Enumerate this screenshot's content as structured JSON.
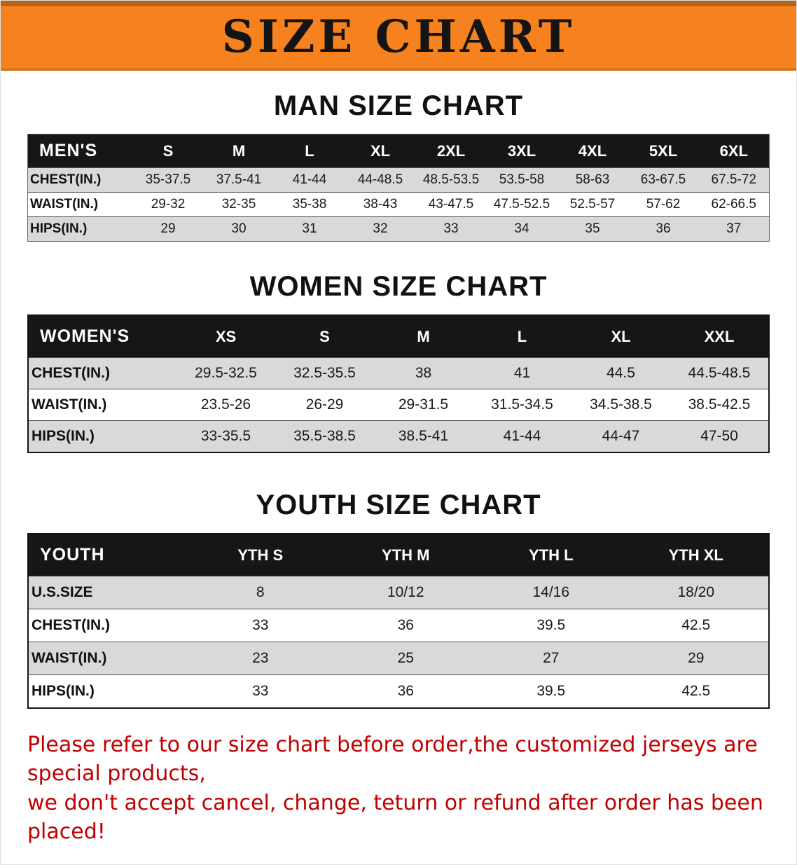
{
  "banner": {
    "title": "SIZE CHART",
    "bg_color": "#f6821f"
  },
  "colors": {
    "table_header_bg": "#161616",
    "row_alt_bg": "#d9d9d9",
    "disclaimer_text": "#c00000"
  },
  "sections": [
    {
      "id": "men",
      "heading": "MAN SIZE CHART",
      "table": {
        "header": [
          "MEN'S",
          "S",
          "M",
          "L",
          "XL",
          "2XL",
          "3XL",
          "4XL",
          "5XL",
          "6XL"
        ],
        "rows": [
          [
            "CHEST(IN.)",
            "35-37.5",
            "37.5-41",
            "41-44",
            "44-48.5",
            "48.5-53.5",
            "53.5-58",
            "58-63",
            "63-67.5",
            "67.5-72"
          ],
          [
            "WAIST(IN.)",
            "29-32",
            "32-35",
            "35-38",
            "38-43",
            "43-47.5",
            "47.5-52.5",
            "52.5-57",
            "57-62",
            "62-66.5"
          ],
          [
            "HIPS(IN.)",
            "29",
            "30",
            "31",
            "32",
            "33",
            "34",
            "35",
            "36",
            "37"
          ]
        ]
      }
    },
    {
      "id": "women",
      "heading": "WOMEN SIZE CHART",
      "table": {
        "header": [
          "WOMEN'S",
          "XS",
          "S",
          "M",
          "L",
          "XL",
          "XXL"
        ],
        "rows": [
          [
            "CHEST(IN.)",
            "29.5-32.5",
            "32.5-35.5",
            "38",
            "41",
            "44.5",
            "44.5-48.5"
          ],
          [
            "WAIST(IN.)",
            "23.5-26",
            "26-29",
            "29-31.5",
            "31.5-34.5",
            "34.5-38.5",
            "38.5-42.5"
          ],
          [
            "HIPS(IN.)",
            "33-35.5",
            "35.5-38.5",
            "38.5-41",
            "41-44",
            "44-47",
            "47-50"
          ]
        ]
      }
    },
    {
      "id": "youth",
      "heading": "YOUTH SIZE CHART",
      "table": {
        "header": [
          "YOUTH",
          "YTH S",
          "YTH M",
          "YTH L",
          "YTH XL"
        ],
        "rows": [
          [
            "U.S.SIZE",
            "8",
            "10/12",
            "14/16",
            "18/20"
          ],
          [
            "CHEST(IN.)",
            "33",
            "36",
            "39.5",
            "42.5"
          ],
          [
            "WAIST(IN.)",
            "23",
            "25",
            "27",
            "29"
          ],
          [
            "HIPS(IN.)",
            "33",
            "36",
            "39.5",
            "42.5"
          ]
        ]
      }
    }
  ],
  "disclaimer": {
    "lines": [
      "Please refer to our size chart before order,the customized jerseys are special products,",
      "we don't accept cancel, change, teturn or refund after order has been placed!"
    ]
  }
}
